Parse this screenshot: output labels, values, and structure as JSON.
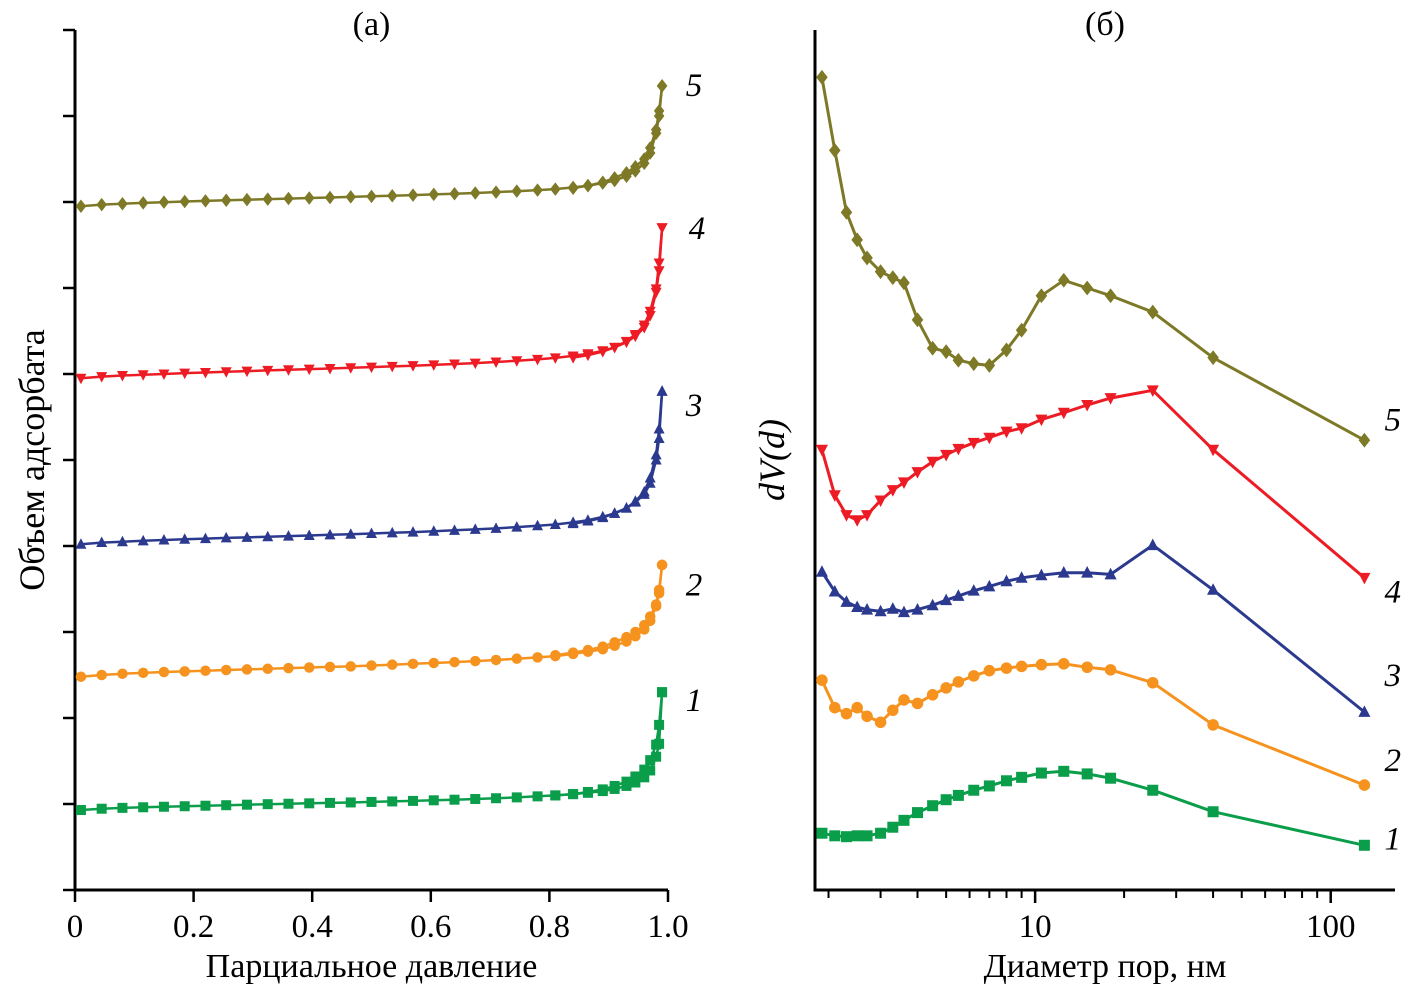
{
  "figure": {
    "panels": [
      {
        "title": "(а)",
        "xlabel": "Парциальное давление",
        "ylabel": "Объем адсорбата"
      },
      {
        "title": "(б)",
        "xlabel": "Диаметр пор, нм",
        "ylabel": "dV(d)"
      }
    ]
  },
  "chart_data": [
    {
      "type": "line",
      "title": "(а)",
      "xlabel": "Парциальное давление",
      "ylabel": "Объем адсорбата",
      "xscale": "linear",
      "xlim": [
        0,
        1.0
      ],
      "ylim": [
        0,
        100
      ],
      "grid": false,
      "x_ticks": [
        0,
        0.2,
        0.4,
        0.6,
        0.8,
        1.0
      ],
      "x_tick_labels": [
        "0",
        "0.2",
        "0.4",
        "0.6",
        "0.8",
        "1.0"
      ],
      "y_ticks_unlabeled_step": 10,
      "x": [
        0.01,
        0.045,
        0.08,
        0.115,
        0.15,
        0.185,
        0.22,
        0.255,
        0.29,
        0.325,
        0.36,
        0.395,
        0.43,
        0.465,
        0.5,
        0.535,
        0.57,
        0.605,
        0.64,
        0.675,
        0.71,
        0.745,
        0.78,
        0.81,
        0.84,
        0.865,
        0.89,
        0.91,
        0.93,
        0.945,
        0.96,
        0.97,
        0.98,
        0.985,
        0.99
      ],
      "series": [
        {
          "name": "1",
          "color": "#0a9e4b",
          "marker": "square",
          "label_pos": [
            1.03,
            22.1
          ],
          "values": [
            9.3,
            9.45,
            9.55,
            9.62,
            9.68,
            9.74,
            9.8,
            9.86,
            9.92,
            9.98,
            10.03,
            10.08,
            10.13,
            10.18,
            10.24,
            10.3,
            10.36,
            10.43,
            10.5,
            10.58,
            10.67,
            10.77,
            10.89,
            11.0,
            11.15,
            11.3,
            11.5,
            11.75,
            12.1,
            12.5,
            13.1,
            13.9,
            15.5,
            17.0,
            23.0
          ],
          "desorption": [
            [
              0.99,
              23.0
            ],
            [
              0.985,
              19.2
            ],
            [
              0.98,
              16.9
            ],
            [
              0.97,
              15.1
            ],
            [
              0.96,
              14.0
            ],
            [
              0.945,
              13.2
            ],
            [
              0.93,
              12.6
            ],
            [
              0.91,
              12.1
            ],
            [
              0.89,
              11.7
            ],
            [
              0.865,
              11.4
            ],
            [
              0.84,
              11.15
            ],
            [
              0.81,
              11.0
            ]
          ]
        },
        {
          "name": "2",
          "color": "#f6921e",
          "marker": "circle",
          "label_pos": [
            1.03,
            35.5
          ],
          "values": [
            24.8,
            25.0,
            25.15,
            25.25,
            25.35,
            25.42,
            25.5,
            25.58,
            25.65,
            25.72,
            25.8,
            25.87,
            25.94,
            26.0,
            26.1,
            26.2,
            26.3,
            26.4,
            26.5,
            26.62,
            26.75,
            26.9,
            27.05,
            27.2,
            27.45,
            27.7,
            28.0,
            28.4,
            28.9,
            29.5,
            30.3,
            31.3,
            33.0,
            34.5,
            37.8
          ],
          "desorption": [
            [
              0.99,
              37.8
            ],
            [
              0.985,
              34.9
            ],
            [
              0.98,
              33.2
            ],
            [
              0.97,
              31.8
            ],
            [
              0.96,
              30.8
            ],
            [
              0.945,
              30.0
            ],
            [
              0.93,
              29.4
            ],
            [
              0.91,
              28.8
            ],
            [
              0.89,
              28.3
            ],
            [
              0.865,
              27.9
            ],
            [
              0.84,
              27.6
            ],
            [
              0.81,
              27.3
            ]
          ]
        },
        {
          "name": "3",
          "color": "#2b3a8f",
          "marker": "triangle-up",
          "label_pos": [
            1.03,
            56.4
          ],
          "values": [
            40.2,
            40.4,
            40.5,
            40.6,
            40.7,
            40.78,
            40.86,
            40.94,
            41.0,
            41.08,
            41.15,
            41.22,
            41.3,
            41.37,
            41.45,
            41.53,
            41.62,
            41.72,
            41.82,
            41.93,
            42.05,
            42.2,
            42.35,
            42.5,
            42.75,
            43.0,
            43.4,
            43.8,
            44.4,
            45.1,
            46.0,
            47.3,
            50.0,
            52.5,
            58.0
          ],
          "desorption": [
            [
              0.99,
              58.0
            ],
            [
              0.985,
              53.6
            ],
            [
              0.98,
              50.6
            ],
            [
              0.97,
              47.9
            ],
            [
              0.96,
              46.3
            ],
            [
              0.945,
              45.2
            ],
            [
              0.93,
              44.4
            ],
            [
              0.91,
              43.8
            ],
            [
              0.89,
              43.3
            ],
            [
              0.865,
              42.9
            ],
            [
              0.84,
              42.6
            ]
          ]
        },
        {
          "name": "4",
          "color": "#ed1c24",
          "marker": "triangle-down",
          "label_pos": [
            1.035,
            77.0
          ],
          "values": [
            59.5,
            59.7,
            59.82,
            59.92,
            60.0,
            60.1,
            60.18,
            60.26,
            60.34,
            60.42,
            60.5,
            60.57,
            60.64,
            60.72,
            60.8,
            60.88,
            60.97,
            61.06,
            61.16,
            61.27,
            61.4,
            61.54,
            61.7,
            61.87,
            62.1,
            62.35,
            62.7,
            63.1,
            63.7,
            64.4,
            65.4,
            66.8,
            69.5,
            72.0,
            77.0
          ],
          "desorption": [
            [
              0.99,
              77.0
            ],
            [
              0.985,
              72.9
            ],
            [
              0.98,
              69.9
            ],
            [
              0.97,
              67.3
            ],
            [
              0.96,
              65.7
            ],
            [
              0.945,
              64.6
            ],
            [
              0.93,
              63.8
            ],
            [
              0.91,
              63.1
            ],
            [
              0.89,
              62.6
            ],
            [
              0.865,
              62.2
            ],
            [
              0.84,
              61.9
            ]
          ]
        },
        {
          "name": "5",
          "color": "#7d7926",
          "marker": "diamond",
          "label_pos": [
            1.03,
            93.6
          ],
          "values": [
            79.5,
            79.7,
            79.8,
            79.9,
            79.98,
            80.06,
            80.13,
            80.2,
            80.27,
            80.34,
            80.4,
            80.46,
            80.52,
            80.59,
            80.66,
            80.73,
            80.8,
            80.88,
            80.96,
            81.05,
            81.15,
            81.26,
            81.38,
            81.5,
            81.7,
            81.9,
            82.2,
            82.5,
            83.0,
            83.6,
            84.5,
            85.7,
            88.0,
            90.0,
            93.5
          ],
          "desorption": [
            [
              0.99,
              93.5
            ],
            [
              0.985,
              90.6
            ],
            [
              0.98,
              88.4
            ],
            [
              0.97,
              86.3
            ],
            [
              0.96,
              85.0
            ],
            [
              0.945,
              84.1
            ],
            [
              0.93,
              83.4
            ],
            [
              0.91,
              82.8
            ],
            [
              0.89,
              82.3
            ],
            [
              0.865,
              81.9
            ],
            [
              0.84,
              81.6
            ]
          ]
        }
      ]
    },
    {
      "type": "line",
      "title": "(б)",
      "xlabel": "Диаметр пор, нм",
      "ylabel": "dV(d)",
      "xscale": "log",
      "xlim": [
        1.8,
        165
      ],
      "ylim": [
        0,
        100
      ],
      "grid": false,
      "x_major_ticks": [
        10,
        100
      ],
      "x_major_tick_labels": [
        "10",
        "100"
      ],
      "x_minor_ticks": [
        2,
        3,
        4,
        5,
        6,
        7,
        8,
        9,
        20,
        30,
        40,
        50,
        60,
        70,
        80,
        90
      ],
      "series": [
        {
          "name": "1",
          "color": "#0a9e4b",
          "marker": "square",
          "label_pos": [
            152,
            6.0
          ],
          "x": [
            1.9,
            2.1,
            2.3,
            2.5,
            2.7,
            3.0,
            3.3,
            3.6,
            4.0,
            4.5,
            5.0,
            5.5,
            6.2,
            7.0,
            8.0,
            9.0,
            10.5,
            12.5,
            15,
            18,
            25,
            40,
            130
          ],
          "y": [
            6.6,
            6.3,
            6.2,
            6.3,
            6.3,
            6.6,
            7.3,
            8.1,
            9.0,
            9.8,
            10.5,
            11.0,
            11.6,
            12.1,
            12.7,
            13.1,
            13.6,
            13.8,
            13.5,
            13.0,
            11.6,
            9.1,
            5.2
          ]
        },
        {
          "name": "2",
          "color": "#f6921e",
          "marker": "circle",
          "label_pos": [
            152,
            15.1
          ],
          "x": [
            1.9,
            2.1,
            2.3,
            2.5,
            2.7,
            3.0,
            3.3,
            3.6,
            4.0,
            4.5,
            5.0,
            5.5,
            6.2,
            7.0,
            8.0,
            9.0,
            10.5,
            12.5,
            15,
            18,
            25,
            40,
            130
          ],
          "y": [
            24.4,
            21.2,
            20.5,
            21.2,
            20.2,
            19.5,
            20.9,
            22.1,
            21.7,
            22.7,
            23.5,
            24.2,
            24.9,
            25.5,
            25.8,
            26.0,
            26.2,
            26.3,
            25.9,
            25.6,
            24.1,
            19.2,
            12.2
          ]
        },
        {
          "name": "3",
          "color": "#2b3a8f",
          "marker": "triangle-up",
          "label_pos": [
            152,
            25.0
          ],
          "x": [
            1.9,
            2.1,
            2.3,
            2.5,
            2.7,
            3.0,
            3.3,
            3.6,
            4.0,
            4.5,
            5.0,
            5.5,
            6.2,
            7.0,
            8.0,
            9.0,
            10.5,
            12.5,
            15,
            18,
            25,
            40,
            130
          ],
          "y": [
            37.0,
            34.7,
            33.5,
            32.9,
            32.6,
            32.4,
            32.7,
            32.3,
            32.6,
            33.1,
            33.7,
            34.2,
            34.8,
            35.3,
            35.9,
            36.3,
            36.6,
            36.9,
            36.9,
            36.7,
            40.1,
            34.9,
            20.7
          ]
        },
        {
          "name": "4",
          "color": "#ed1c24",
          "marker": "triangle-down",
          "label_pos": [
            152,
            34.7
          ],
          "x": [
            1.9,
            2.1,
            2.3,
            2.5,
            2.7,
            3.0,
            3.3,
            3.6,
            4.0,
            4.5,
            5.0,
            5.5,
            6.2,
            7.0,
            8.0,
            9.0,
            10.5,
            12.5,
            15,
            18,
            25,
            40,
            130
          ],
          "y": [
            51.2,
            45.9,
            43.6,
            43.0,
            43.6,
            45.3,
            46.5,
            47.4,
            48.6,
            49.8,
            50.6,
            51.3,
            52.0,
            52.6,
            53.3,
            53.7,
            54.7,
            55.5,
            56.4,
            57.2,
            58.1,
            51.2,
            36.3
          ]
        },
        {
          "name": "5",
          "color": "#7d7926",
          "marker": "diamond",
          "label_pos": [
            152,
            54.7
          ],
          "x": [
            1.9,
            2.1,
            2.3,
            2.5,
            2.7,
            3.0,
            3.3,
            3.6,
            4.0,
            4.5,
            5.0,
            5.5,
            6.2,
            7.0,
            8.0,
            9.0,
            10.5,
            12.5,
            15,
            18,
            25,
            40,
            130
          ],
          "y": [
            94.5,
            86.0,
            78.8,
            75.6,
            73.5,
            71.9,
            71.2,
            70.6,
            66.3,
            63.0,
            62.6,
            61.6,
            61.2,
            61.0,
            62.8,
            65.1,
            69.1,
            70.9,
            70.0,
            69.1,
            67.2,
            61.9,
            52.3
          ]
        }
      ]
    }
  ]
}
